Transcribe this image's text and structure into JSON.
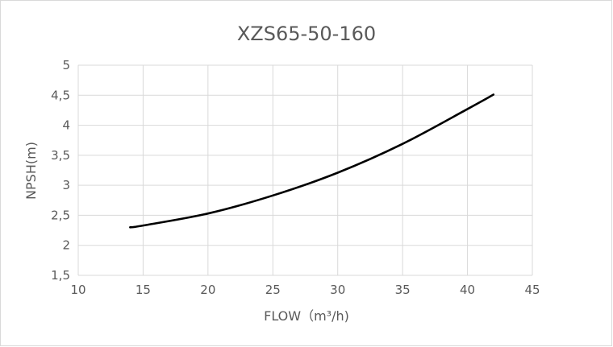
{
  "chart_data": {
    "type": "line",
    "title": "XZS65-50-160",
    "xlabel": "FLOW（m³/h)",
    "ylabel": "NPSH(m)",
    "xlim": [
      10,
      45
    ],
    "ylim": [
      1.5,
      5
    ],
    "grid": true,
    "xticks": [
      "10",
      "15",
      "20",
      "25",
      "30",
      "35",
      "40",
      "45"
    ],
    "yticks": [
      "1,5",
      "2",
      "2,5",
      "3",
      "3,5",
      "4",
      "4,5",
      "5"
    ],
    "series": [
      {
        "name": "NPSH",
        "color": "#000000",
        "x": [
          14,
          15,
          20,
          25,
          30,
          35,
          40,
          42
        ],
        "y": [
          2.3,
          2.33,
          2.53,
          2.83,
          3.21,
          3.69,
          4.27,
          4.51
        ]
      }
    ]
  }
}
